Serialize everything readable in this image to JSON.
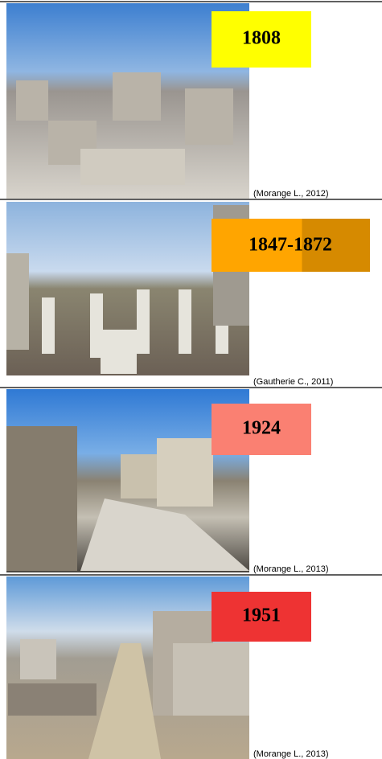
{
  "panels": [
    {
      "year": "1808",
      "credit": "(Morange L., 2012)"
    },
    {
      "year": "1847-1872",
      "credit": "(Gautherie C., 2011)"
    },
    {
      "year": "1924",
      "credit": "(Morange L., 2013)"
    },
    {
      "year": "1951",
      "credit": "(Morange L., 2013)"
    }
  ]
}
